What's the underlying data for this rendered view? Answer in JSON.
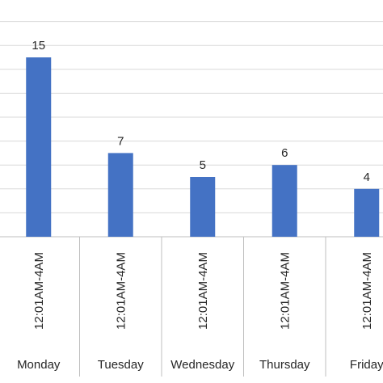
{
  "chart_data": {
    "type": "bar",
    "categories": [
      {
        "group": "Monday",
        "label": "12:01AM-4AM"
      },
      {
        "group": "Tuesday",
        "label": "12:01AM-4AM"
      },
      {
        "group": "Wednesday",
        "label": "12:01AM-4AM"
      },
      {
        "group": "Thursday",
        "label": "12:01AM-4AM"
      },
      {
        "group": "Friday",
        "label": "12:01AM-4AM"
      }
    ],
    "values": [
      15,
      7,
      5,
      6,
      4
    ],
    "data_labels": [
      "15",
      "7",
      "5",
      "6",
      "4"
    ],
    "ylim": [
      0,
      18
    ],
    "y_grid_step": 2,
    "grid": true,
    "bar_color": "#4472c4",
    "title": "",
    "xlabel": "",
    "ylabel": ""
  }
}
